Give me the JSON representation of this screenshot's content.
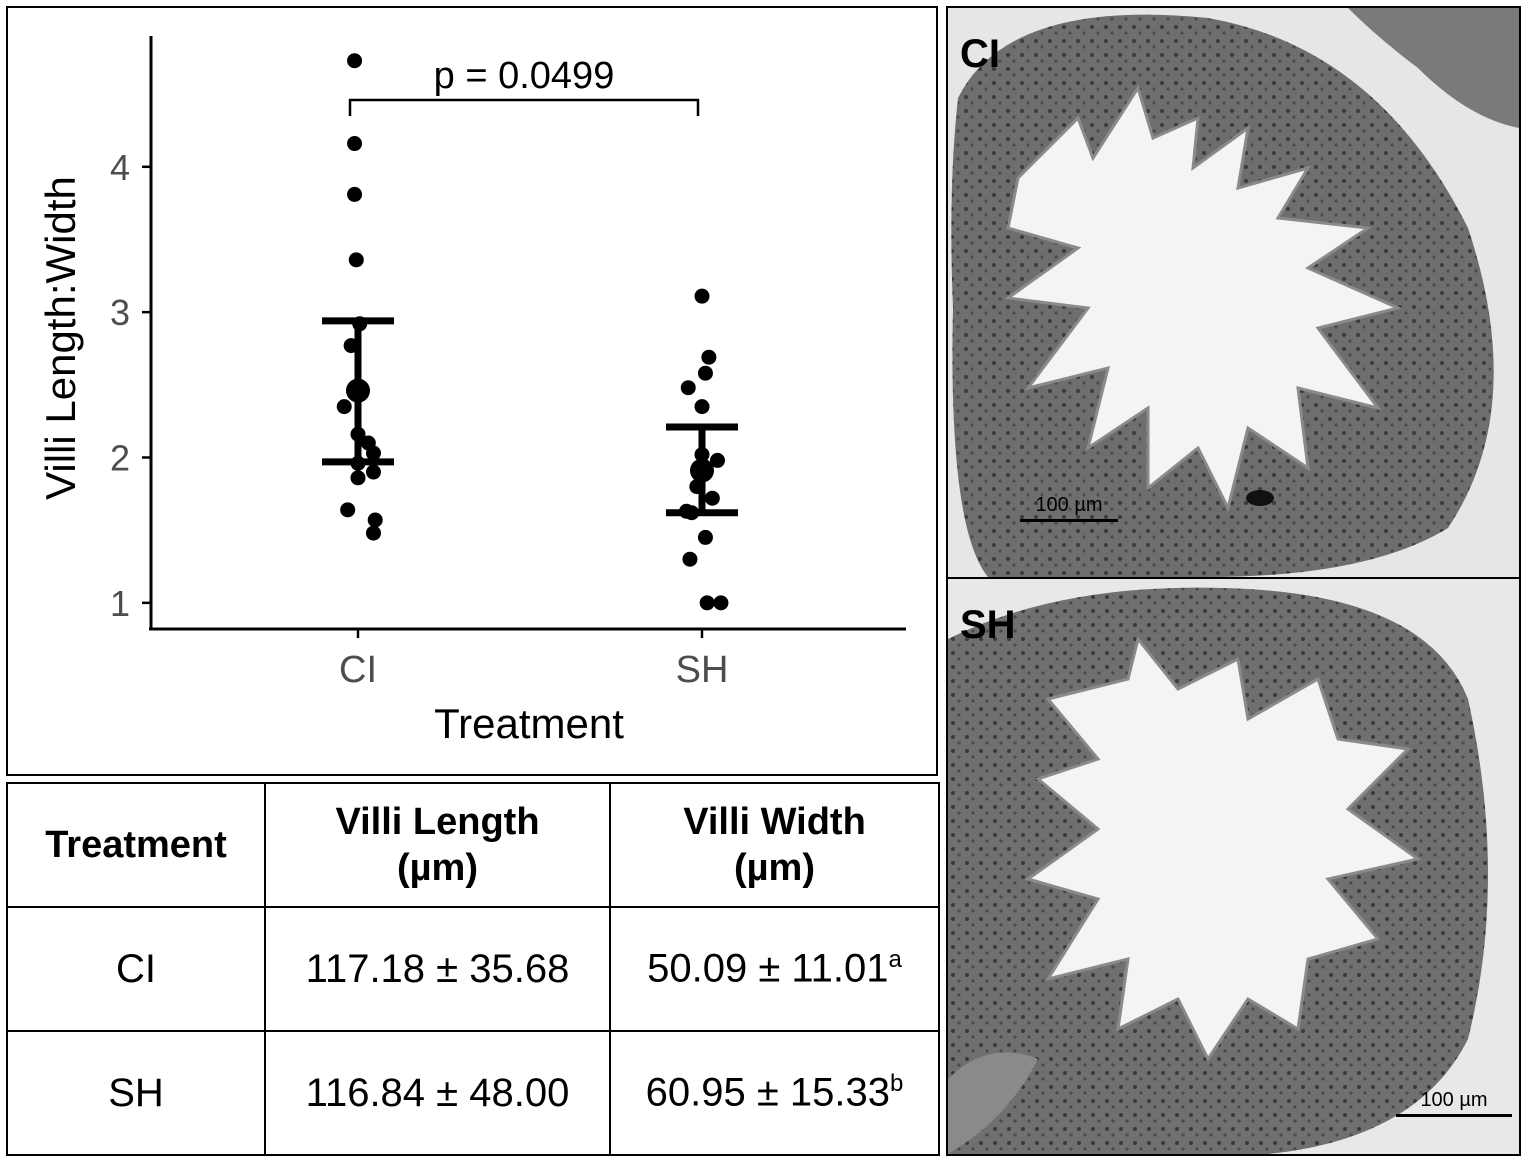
{
  "chart_data": {
    "type": "scatter",
    "xlabel": "Treatment",
    "ylabel": "Villi Length:Width",
    "categories": [
      "CI",
      "SH"
    ],
    "yticks": [
      1,
      2,
      3,
      4
    ],
    "ylim": [
      0.82,
      4.9
    ],
    "annotation": "p = 0.0499",
    "series": [
      {
        "category": "CI",
        "points": [
          4.73,
          4.16,
          3.81,
          3.36,
          2.92,
          2.77,
          2.47,
          2.45,
          2.35,
          2.16,
          2.1,
          2.03,
          1.96,
          1.9,
          1.86,
          1.64,
          1.57,
          1.48
        ],
        "jitter": [
          -0.02,
          -0.02,
          -0.02,
          -0.01,
          0.01,
          -0.04,
          0.01,
          0.0,
          -0.08,
          0.0,
          0.06,
          0.09,
          0.0,
          0.09,
          0.0,
          -0.06,
          0.1,
          0.09
        ],
        "mean": 2.46,
        "error_low": 1.97,
        "error_high": 2.94
      },
      {
        "category": "SH",
        "points": [
          3.11,
          2.69,
          2.58,
          2.48,
          2.35,
          2.02,
          1.98,
          1.93,
          1.9,
          1.8,
          1.72,
          1.63,
          1.62,
          1.45,
          1.3,
          1.0,
          1.0
        ],
        "jitter": [
          0.0,
          0.04,
          0.02,
          -0.08,
          0.0,
          0.0,
          0.09,
          -0.02,
          0.01,
          -0.03,
          0.06,
          -0.09,
          -0.06,
          0.02,
          -0.07,
          0.03,
          0.11
        ],
        "mean": 1.91,
        "error_low": 1.62,
        "error_high": 2.21
      }
    ]
  },
  "table": {
    "headers": [
      "Treatment",
      "Villi Length\n(µm)",
      "Villi Width\n(µm)"
    ],
    "rows": [
      {
        "treatment": "CI",
        "length": "117.18 ± 35.68",
        "width": "50.09 ± 11.01",
        "width_sup": "a"
      },
      {
        "treatment": "SH",
        "length": "116.84 ± 48.00",
        "width": "60.95 ± 15.33",
        "width_sup": "b"
      }
    ]
  },
  "images": [
    {
      "label": "CI",
      "scale": "100 µm"
    },
    {
      "label": "SH",
      "scale": "100 µm"
    }
  ]
}
